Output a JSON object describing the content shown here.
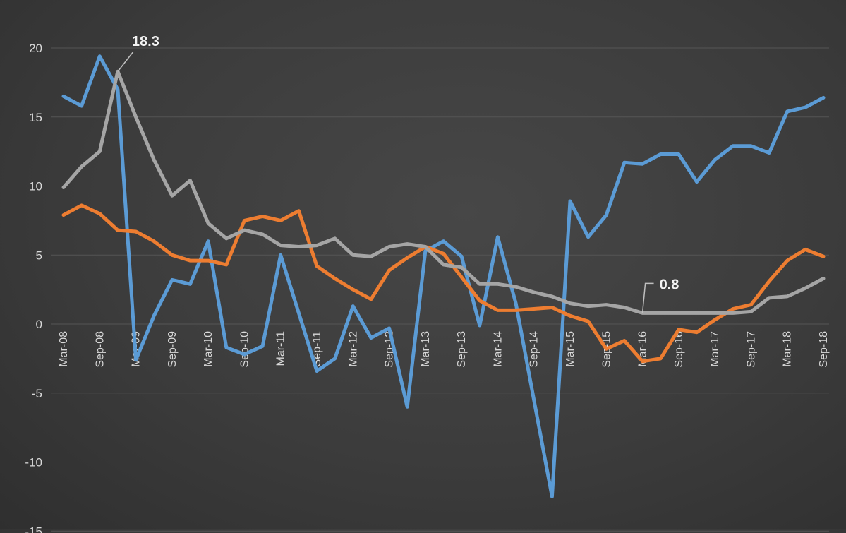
{
  "chart_data": {
    "type": "line",
    "title": "",
    "xlabel": "",
    "ylabel": "",
    "ylim": [
      -15,
      20
    ],
    "yticks": [
      "20",
      "15",
      "10",
      "5",
      "0",
      "-5",
      "-10",
      "-15"
    ],
    "ytick_values": [
      20,
      15,
      10,
      5,
      0,
      -5,
      -10,
      -15
    ],
    "grid": true,
    "legend": "none",
    "x_labels": [
      "Mar-08",
      "Sep-08",
      "Mar-09",
      "Sep-09",
      "Mar-10",
      "Sep-10",
      "Mar-11",
      "Sep-11",
      "Mar-12",
      "Sep-12",
      "Mar-13",
      "Sep-13",
      "Mar-14",
      "Sep-14",
      "Mar-15",
      "Sep-15",
      "Mar-16",
      "Sep-16",
      "Mar-17",
      "Sep-17",
      "Mar-18",
      "Sep-18"
    ],
    "x": [
      "Mar-08",
      "Jun-08",
      "Sep-08",
      "Dec-08",
      "Mar-09",
      "Jun-09",
      "Sep-09",
      "Dec-09",
      "Mar-10",
      "Jun-10",
      "Sep-10",
      "Dec-10",
      "Mar-11",
      "Jun-11",
      "Sep-11",
      "Dec-11",
      "Mar-12",
      "Jun-12",
      "Sep-12",
      "Dec-12",
      "Mar-13",
      "Jun-13",
      "Sep-13",
      "Dec-13",
      "Mar-14",
      "Jun-14",
      "Sep-14",
      "Dec-14",
      "Mar-15",
      "Jun-15",
      "Sep-15",
      "Dec-15",
      "Mar-16",
      "Jun-16",
      "Sep-16",
      "Dec-16",
      "Mar-17",
      "Jun-17",
      "Sep-17",
      "Dec-17",
      "Mar-18",
      "Jun-18",
      "Sep-18"
    ],
    "series": [
      {
        "color": "#5b9bd5",
        "values": [
          16.5,
          15.8,
          19.4,
          17.0,
          -2.6,
          0.6,
          3.2,
          2.9,
          6.0,
          -1.7,
          -2.2,
          -1.6,
          5.0,
          0.8,
          -3.4,
          -2.5,
          1.3,
          -1.0,
          -0.3,
          -6.0,
          5.3,
          6.0,
          4.9,
          -0.1,
          6.3,
          1.5,
          -5.5,
          -12.5,
          8.9,
          6.3,
          7.9,
          11.7,
          11.6,
          12.3,
          12.3,
          10.3,
          11.9,
          12.9,
          12.9,
          12.4,
          15.4,
          15.7,
          16.4
        ]
      },
      {
        "color": "#ed7d31",
        "values": [
          7.9,
          8.6,
          8.0,
          6.8,
          6.7,
          6.0,
          5.0,
          4.6,
          4.6,
          4.3,
          7.5,
          7.8,
          7.5,
          8.2,
          4.2,
          3.3,
          2.5,
          1.8,
          3.9,
          4.8,
          5.6,
          5.1,
          3.4,
          1.7,
          1.0,
          1.0,
          1.1,
          1.2,
          0.6,
          0.2,
          -1.8,
          -1.2,
          -2.7,
          -2.5,
          -0.4,
          -0.6,
          0.3,
          1.1,
          1.4,
          3.1,
          4.6,
          5.4,
          4.9
        ]
      },
      {
        "color": "#a5a5a5",
        "values": [
          9.9,
          11.4,
          12.5,
          18.3,
          15.0,
          11.9,
          9.3,
          10.4,
          7.3,
          6.2,
          6.8,
          6.5,
          5.7,
          5.6,
          5.7,
          6.2,
          5.0,
          4.9,
          5.6,
          5.8,
          5.6,
          4.3,
          4.1,
          2.9,
          2.9,
          2.7,
          2.3,
          2.0,
          1.5,
          1.3,
          1.4,
          1.2,
          0.8,
          0.8,
          0.8,
          0.8,
          0.8,
          0.8,
          0.9,
          1.9,
          2.0,
          2.6,
          3.3
        ]
      }
    ],
    "annotations": [
      {
        "text": "18.3",
        "series": 2,
        "point": 3
      },
      {
        "text": "0.8",
        "series": 2,
        "point": 32
      }
    ]
  }
}
